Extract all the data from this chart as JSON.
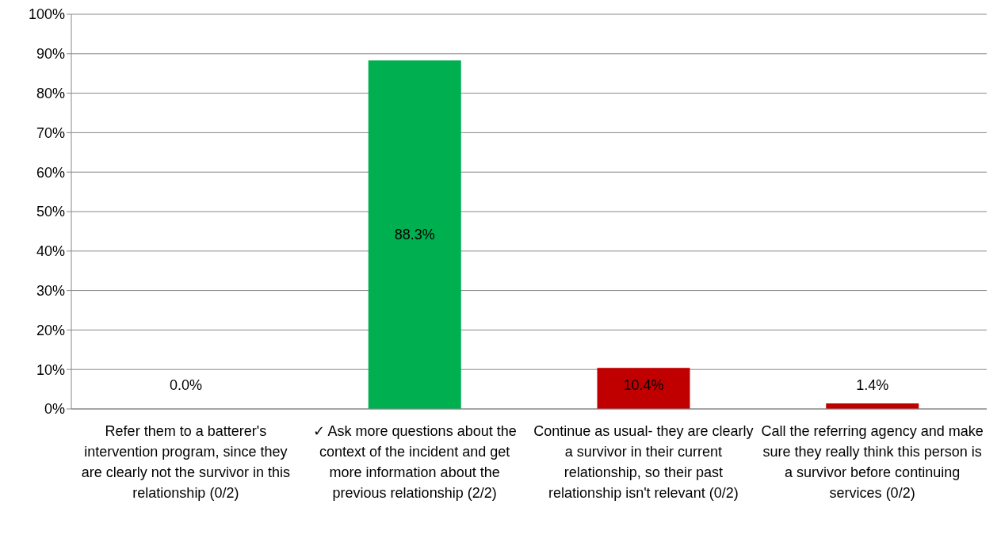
{
  "chart_data": {
    "type": "bar",
    "categories": [
      "Refer them to a batterer's intervention program, since they are clearly not the survivor in this relationship (0/2)",
      "✓ Ask more questions about the context of the incident and get more information about the previous relationship (2/2)",
      "Continue as usual- they are clearly a survivor in their current relationship, so their past relationship isn't relevant (0/2)",
      "Call the referring agency and make sure they really think this person is a survivor before continuing services (0/2)"
    ],
    "values": [
      0,
      88.3,
      10.4,
      1.4
    ],
    "colors": [
      null,
      "#00b050",
      "#c00000",
      "#c00000"
    ],
    "value_labels": [
      "0.0%",
      "88.3%",
      "10.4%",
      "1.4%"
    ],
    "ylim": [
      0,
      100
    ],
    "yticks": [
      {
        "value": 0,
        "label": "0%"
      },
      {
        "value": 10,
        "label": "10%"
      },
      {
        "value": 20,
        "label": "20%"
      },
      {
        "value": 30,
        "label": "30%"
      },
      {
        "value": 40,
        "label": "40%"
      },
      {
        "value": 50,
        "label": "50%"
      },
      {
        "value": 60,
        "label": "60%"
      },
      {
        "value": 70,
        "label": "70%"
      },
      {
        "value": 80,
        "label": "80%"
      },
      {
        "value": 90,
        "label": "90%"
      },
      {
        "value": 100,
        "label": "100%"
      }
    ],
    "grid": "y",
    "legend": false
  }
}
